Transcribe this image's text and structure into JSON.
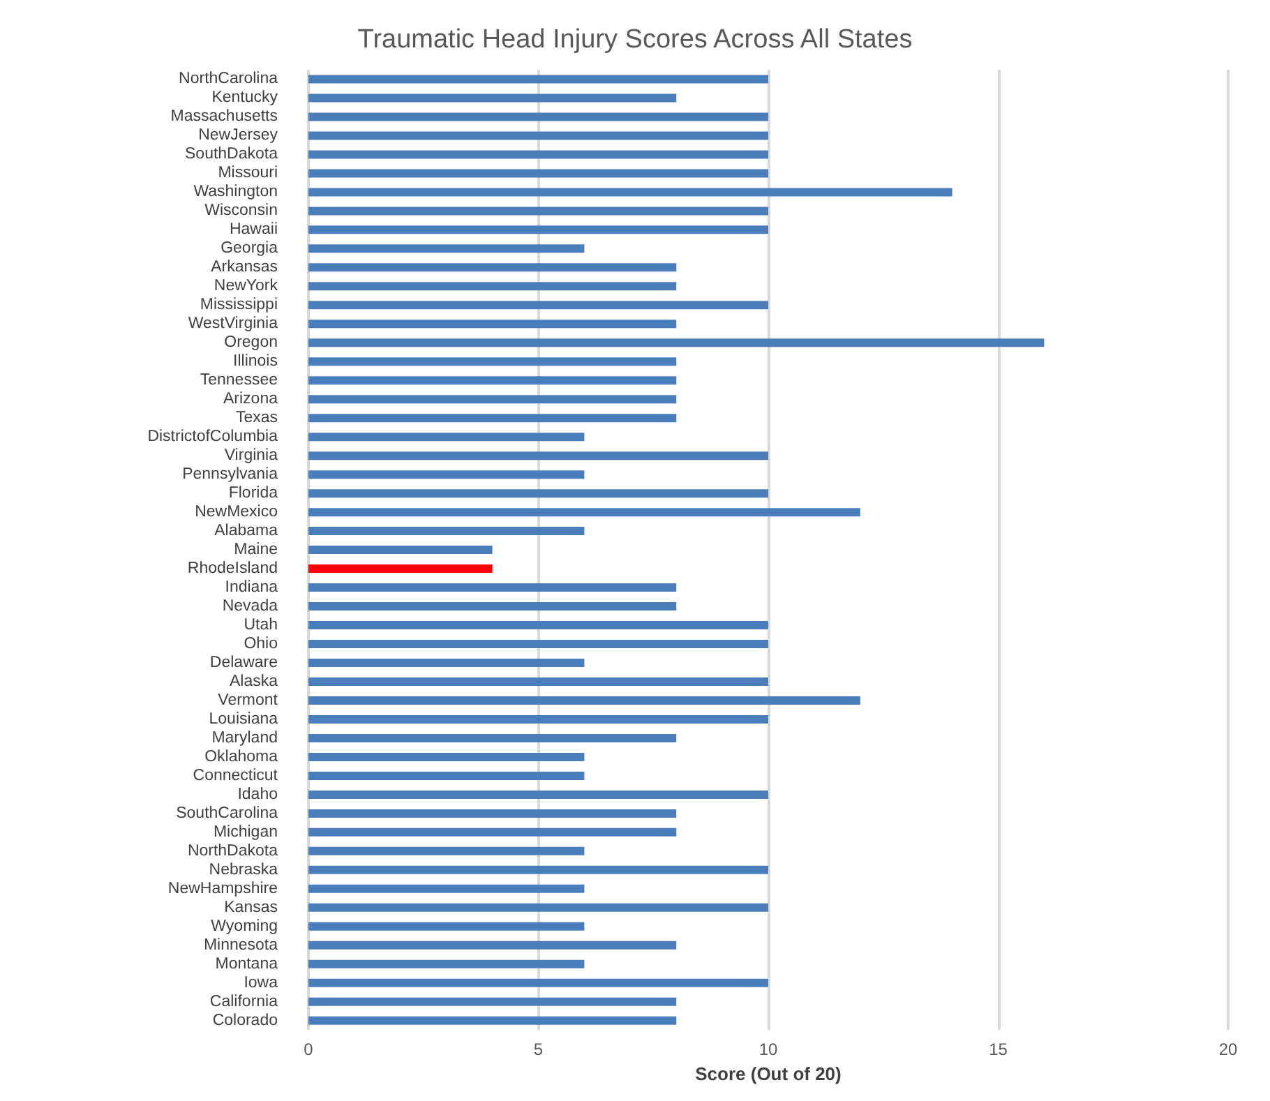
{
  "chart_data": {
    "type": "bar",
    "orientation": "horizontal",
    "title": "Traumatic Head Injury Scores Across All States",
    "xlabel": "Score (Out of 20)",
    "categories": [
      "NorthCarolina",
      "Kentucky",
      "Massachusetts",
      "NewJersey",
      "SouthDakota",
      "Missouri",
      "Washington",
      "Wisconsin",
      "Hawaii",
      "Georgia",
      "Arkansas",
      "NewYork",
      "Mississippi",
      "WestVirginia",
      "Oregon",
      "Illinois",
      "Tennessee",
      "Arizona",
      "Texas",
      "DistrictofColumbia",
      "Virginia",
      "Pennsylvania",
      "Florida",
      "NewMexico",
      "Alabama",
      "Maine",
      "RhodeIsland",
      "Indiana",
      "Nevada",
      "Utah",
      "Ohio",
      "Delaware",
      "Alaska",
      "Vermont",
      "Louisiana",
      "Maryland",
      "Oklahoma",
      "Connecticut",
      "Idaho",
      "SouthCarolina",
      "Michigan",
      "NorthDakota",
      "Nebraska",
      "NewHampshire",
      "Kansas",
      "Wyoming",
      "Minnesota",
      "Montana",
      "Iowa",
      "California",
      "Colorado"
    ],
    "values": [
      10,
      8,
      10,
      10,
      10,
      10,
      14,
      10,
      10,
      6,
      8,
      8,
      10,
      8,
      16,
      8,
      8,
      8,
      8,
      6,
      10,
      6,
      10,
      12,
      6,
      4,
      4,
      8,
      8,
      10,
      10,
      6,
      10,
      12,
      10,
      8,
      6,
      6,
      10,
      8,
      8,
      6,
      10,
      6,
      10,
      6,
      8,
      6,
      10,
      8,
      8
    ],
    "colors": [
      "#4a7ebb",
      "#4a7ebb",
      "#4a7ebb",
      "#4a7ebb",
      "#4a7ebb",
      "#4a7ebb",
      "#4a7ebb",
      "#4a7ebb",
      "#4a7ebb",
      "#4a7ebb",
      "#4a7ebb",
      "#4a7ebb",
      "#4a7ebb",
      "#4a7ebb",
      "#4a7ebb",
      "#4a7ebb",
      "#4a7ebb",
      "#4a7ebb",
      "#4a7ebb",
      "#4a7ebb",
      "#4a7ebb",
      "#4a7ebb",
      "#4a7ebb",
      "#4a7ebb",
      "#4a7ebb",
      "#4a7ebb",
      "#ff0000",
      "#4a7ebb",
      "#4a7ebb",
      "#4a7ebb",
      "#4a7ebb",
      "#4a7ebb",
      "#4a7ebb",
      "#4a7ebb",
      "#4a7ebb",
      "#4a7ebb",
      "#4a7ebb",
      "#4a7ebb",
      "#4a7ebb",
      "#4a7ebb",
      "#4a7ebb",
      "#4a7ebb",
      "#4a7ebb",
      "#4a7ebb",
      "#4a7ebb",
      "#4a7ebb",
      "#4a7ebb",
      "#4a7ebb",
      "#4a7ebb",
      "#4a7ebb",
      "#4a7ebb"
    ],
    "xlim": [
      0,
      20
    ],
    "xticks": [
      0,
      5,
      10,
      15,
      20
    ],
    "grid": "x"
  }
}
